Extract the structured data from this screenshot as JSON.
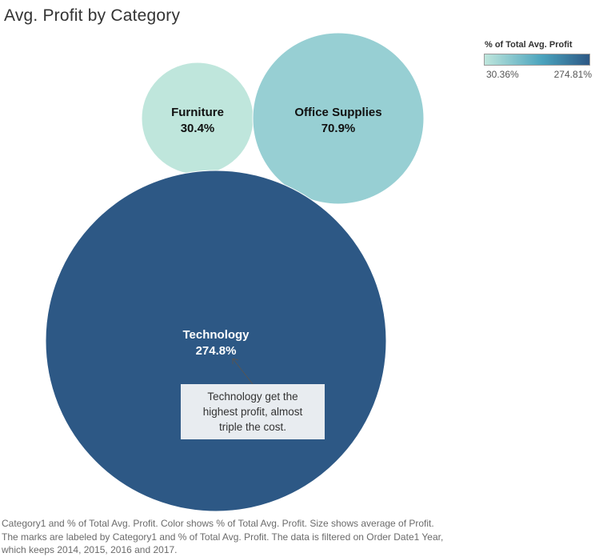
{
  "title": "Avg. Profit by Category",
  "legend": {
    "title": "% of Total Avg. Profit",
    "min_label": "30.36%",
    "max_label": "274.81%",
    "color_low": "#bfe6dc",
    "color_mid": "#4aa3bd",
    "color_high": "#2d5885"
  },
  "chart_data": {
    "type": "bubble",
    "title": "Avg. Profit by Category",
    "size_measure": "Avg. Profit",
    "color_measure": "% of Total Avg. Profit",
    "color_range": [
      30.36,
      274.81
    ],
    "series": [
      {
        "name": "Furniture",
        "value_label": "30.4%",
        "percent_of_total": 30.36,
        "color": "#bfe6dc"
      },
      {
        "name": "Office Supplies",
        "value_label": "70.9%",
        "percent_of_total": 70.9,
        "color": "#97cfd3"
      },
      {
        "name": "Technology",
        "value_label": "274.8%",
        "percent_of_total": 274.81,
        "color": "#2d5885"
      }
    ]
  },
  "annotation": {
    "text": "Technology get the highest profit, almost triple the cost."
  },
  "caption": {
    "line1": "Category1 and % of Total Avg. Profit.  Color shows % of Total Avg. Profit.  Size shows average of Profit.",
    "line2": "The marks are labeled by Category1 and % of Total Avg. Profit. The data is filtered on Order Date1 Year,",
    "line3": "which keeps 2014, 2015, 2016 and 2017."
  }
}
